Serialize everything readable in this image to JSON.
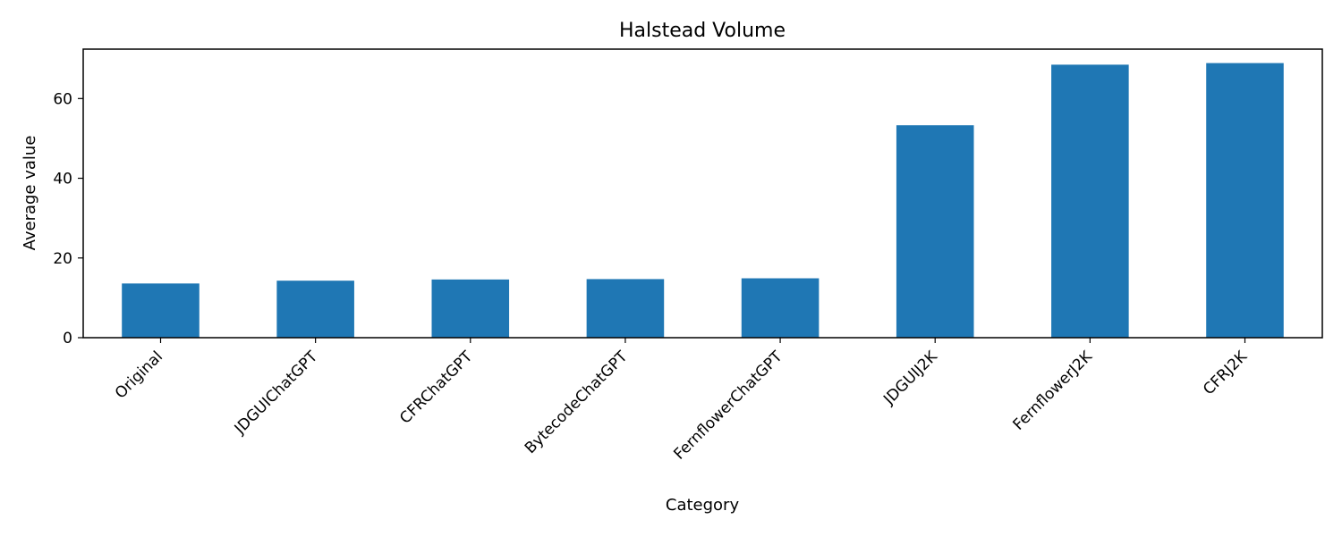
{
  "chart_data": {
    "type": "bar",
    "title": "Halstead Volume",
    "xlabel": "Category",
    "ylabel": "Average value",
    "categories": [
      "Original",
      "JDGUIChatGPT",
      "CFRChatGPT",
      "BytecodeChatGPT",
      "FernflowerChatGPT",
      "JDGUIJ2K",
      "FernflowerJ2K",
      "CFRJ2K"
    ],
    "values": [
      13.6,
      14.3,
      14.6,
      14.7,
      14.9,
      53.3,
      68.5,
      68.9
    ],
    "ylim": [
      0,
      72.4
    ],
    "yticks": [
      0,
      20,
      40,
      60
    ],
    "grid": false,
    "legend": "none",
    "bar_color": "#1f77b4"
  }
}
